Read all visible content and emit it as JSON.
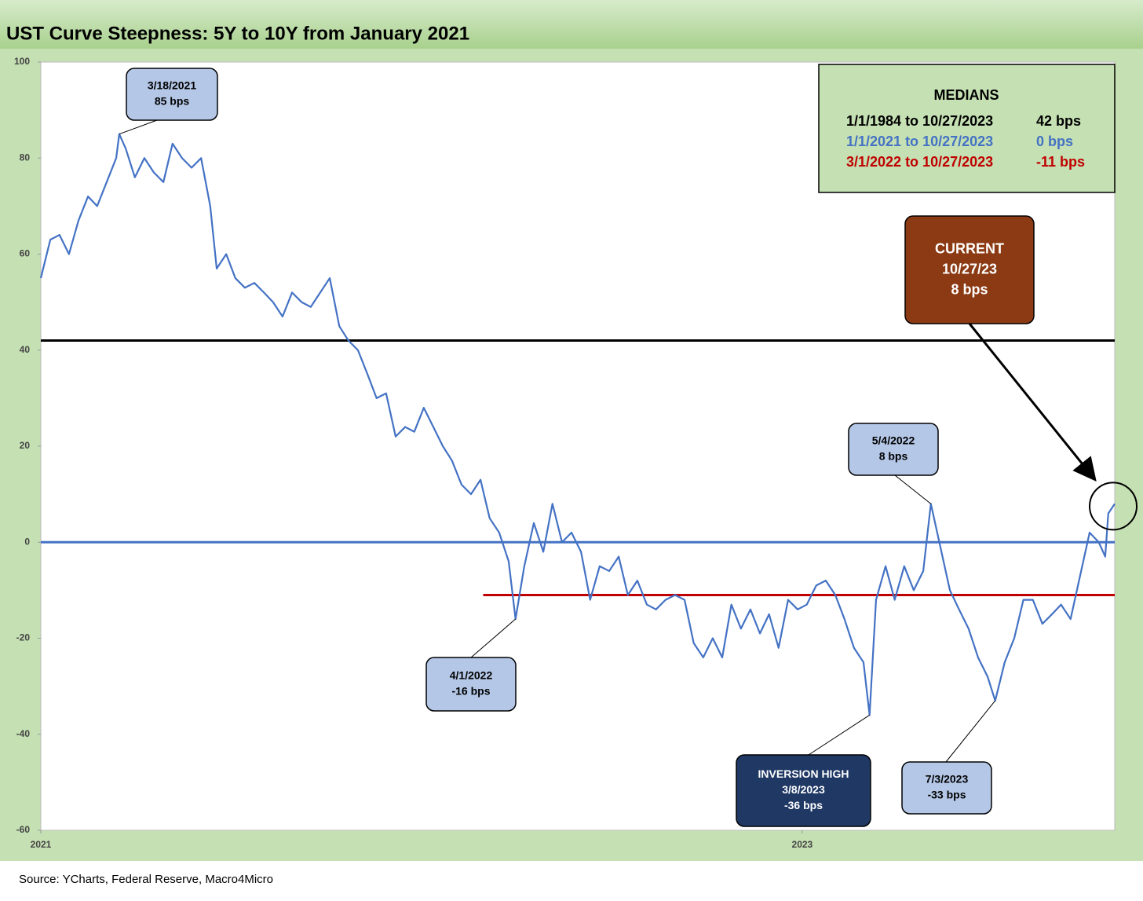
{
  "chart_data": {
    "type": "line",
    "title": "UST Curve Steepness: 5Y to 10Y from January 2021",
    "source": "Source: YCharts, Federal Reserve, Macro4Micro",
    "xlim": [
      2021,
      2023.821
    ],
    "xticks": [
      2021,
      2023
    ],
    "ylim": [
      -60,
      100
    ],
    "yticks": [
      -60,
      -40,
      -20,
      0,
      20,
      40,
      60,
      80,
      100
    ],
    "x": [
      2021.0,
      2021.025,
      2021.049,
      2021.074,
      2021.099,
      2021.124,
      2021.148,
      2021.173,
      2021.198,
      2021.206,
      2021.223,
      2021.247,
      2021.272,
      2021.297,
      2021.322,
      2021.346,
      2021.371,
      2021.396,
      2021.421,
      2021.445,
      2021.462,
      2021.487,
      2021.511,
      2021.536,
      2021.561,
      2021.586,
      2021.61,
      2021.635,
      2021.66,
      2021.685,
      2021.709,
      2021.734,
      2021.759,
      2021.784,
      2021.808,
      2021.833,
      2021.858,
      2021.882,
      2021.907,
      2021.932,
      2021.957,
      2021.981,
      2022.006,
      2022.031,
      2022.056,
      2022.08,
      2022.105,
      2022.13,
      2022.155,
      2022.179,
      2022.204,
      2022.229,
      2022.247,
      2022.27,
      2022.295,
      2022.32,
      2022.344,
      2022.369,
      2022.394,
      2022.419,
      2022.443,
      2022.468,
      2022.493,
      2022.518,
      2022.542,
      2022.567,
      2022.592,
      2022.616,
      2022.641,
      2022.666,
      2022.691,
      2022.715,
      2022.74,
      2022.765,
      2022.79,
      2022.814,
      2022.839,
      2022.864,
      2022.889,
      2022.913,
      2022.938,
      2022.963,
      2022.988,
      2023.012,
      2023.037,
      2023.062,
      2023.087,
      2023.111,
      2023.136,
      2023.161,
      2023.177,
      2023.194,
      2023.219,
      2023.243,
      2023.268,
      2023.293,
      2023.318,
      2023.338,
      2023.363,
      2023.388,
      2023.412,
      2023.437,
      2023.462,
      2023.487,
      2023.507,
      2023.532,
      2023.557,
      2023.581,
      2023.606,
      2023.631,
      2023.656,
      2023.68,
      2023.705,
      2023.73,
      2023.755,
      2023.779,
      2023.796,
      2023.804,
      2023.821
    ],
    "series": [
      {
        "color": "#4472c4",
        "values": [
          55,
          63,
          64,
          60,
          67,
          72,
          70,
          75,
          80,
          85,
          82,
          76,
          80,
          77,
          75,
          83,
          80,
          78,
          80,
          70,
          57,
          60,
          55,
          53,
          54,
          52,
          50,
          47,
          52,
          50,
          49,
          52,
          55,
          45,
          42,
          40,
          35,
          30,
          31,
          22,
          24,
          23,
          28,
          24,
          20,
          17,
          12,
          10,
          13,
          5,
          2,
          -4,
          -16,
          -5,
          4,
          -2,
          8,
          0,
          2,
          -2,
          -12,
          -5,
          -6,
          -3,
          -11,
          -8,
          -13,
          -14,
          -12,
          -11,
          -12,
          -21,
          -24,
          -20,
          -24,
          -13,
          -18,
          -14,
          -19,
          -15,
          -22,
          -12,
          -14,
          -13,
          -9,
          -8,
          -11,
          -16,
          -22,
          -25,
          -36,
          -12,
          -5,
          -12,
          -5,
          -10,
          -6,
          8,
          -1,
          -10,
          -14,
          -18,
          -24,
          -28,
          -33,
          -25,
          -20,
          -12,
          -12,
          -17,
          -15,
          -13,
          -16,
          -7,
          2,
          0,
          -3,
          6,
          8
        ]
      }
    ],
    "medians": {
      "title": "MEDIANS",
      "rows": [
        {
          "label": "1/1/1984 to 10/27/2023",
          "value": 42,
          "value_label": "42 bps",
          "color": "#000000",
          "from": 2021
        },
        {
          "label": "1/1/2021 to 10/27/2023",
          "value": 0,
          "value_label": "0 bps",
          "color": "#4472c4",
          "from": 2021
        },
        {
          "label": "3/1/2022 to 10/27/2023",
          "value": -11,
          "value_label": "-11 bps",
          "color": "#c00000",
          "from": 2022.162
        }
      ]
    },
    "annotations": [
      {
        "lines": [
          "3/18/2021",
          "85 bps"
        ],
        "x": 2021.206,
        "y": 85
      },
      {
        "lines": [
          "4/1/2022",
          "-16 bps"
        ],
        "x": 2022.247,
        "y": -16
      },
      {
        "lines": [
          "INVERSION HIGH",
          "3/8/2023",
          "-36 bps"
        ],
        "x": 2023.177,
        "y": -36
      },
      {
        "lines": [
          "5/4/2022",
          "8 bps"
        ],
        "x": 2023.338,
        "y": 8
      },
      {
        "lines": [
          "7/3/2023",
          "-33 bps"
        ],
        "x": 2023.507,
        "y": -33
      },
      {
        "lines": [
          "CURRENT",
          "10/27/23",
          "8 bps"
        ],
        "x": 2023.821,
        "y": 8
      }
    ]
  }
}
